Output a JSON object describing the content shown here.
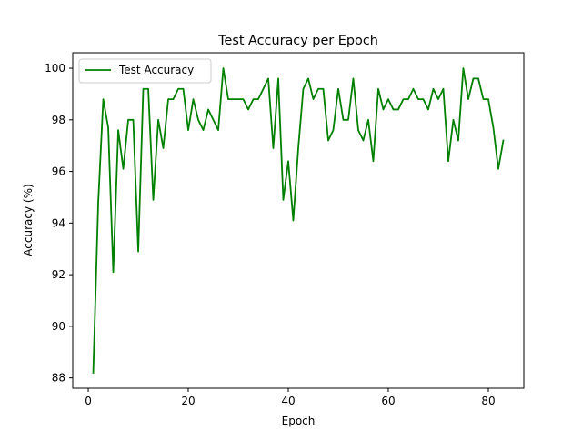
{
  "chart_data": {
    "type": "line",
    "title": "Test Accuracy per Epoch",
    "xlabel": "Epoch",
    "ylabel": "Accuracy (%)",
    "xlim": [
      -3.1,
      87.1
    ],
    "ylim": [
      87.6,
      100.6
    ],
    "xticks": [
      0,
      20,
      40,
      60,
      80
    ],
    "yticks": [
      88,
      90,
      92,
      94,
      96,
      98,
      100
    ],
    "grid": false,
    "legend_position": "upper-left",
    "series": [
      {
        "name": "Test Accuracy",
        "color": "#008000",
        "x": [
          1,
          2,
          3,
          4,
          5,
          6,
          7,
          8,
          9,
          10,
          11,
          12,
          13,
          14,
          15,
          16,
          17,
          18,
          19,
          20,
          21,
          22,
          23,
          24,
          25,
          26,
          27,
          28,
          29,
          30,
          31,
          32,
          33,
          34,
          35,
          36,
          37,
          38,
          39,
          40,
          41,
          42,
          43,
          44,
          45,
          46,
          47,
          48,
          49,
          50,
          51,
          52,
          53,
          54,
          55,
          56,
          57,
          58,
          59,
          60,
          61,
          62,
          63,
          64,
          65,
          66,
          67,
          68,
          69,
          70,
          71,
          72,
          73,
          74,
          75,
          76,
          77,
          78,
          79,
          80,
          81,
          82,
          83
        ],
        "values": [
          88.2,
          94.8,
          98.8,
          97.7,
          92.1,
          97.6,
          96.1,
          98.0,
          98.0,
          92.9,
          99.2,
          99.2,
          94.9,
          98.0,
          96.9,
          98.8,
          98.8,
          99.2,
          99.2,
          97.6,
          98.8,
          98.0,
          97.6,
          98.4,
          98.0,
          97.6,
          100.0,
          98.8,
          98.8,
          98.8,
          98.8,
          98.4,
          98.8,
          98.8,
          99.2,
          99.6,
          96.9,
          99.6,
          94.9,
          96.4,
          94.1,
          96.9,
          99.2,
          99.6,
          98.8,
          99.2,
          99.2,
          97.2,
          97.6,
          99.2,
          98.0,
          98.0,
          99.6,
          97.6,
          97.2,
          98.0,
          96.4,
          99.2,
          98.4,
          98.8,
          98.4,
          98.4,
          98.8,
          98.8,
          99.2,
          98.8,
          98.8,
          98.4,
          99.2,
          98.8,
          99.2,
          96.4,
          98.0,
          97.2,
          100.0,
          98.8,
          99.6,
          99.6,
          98.8,
          98.8,
          97.7,
          96.1,
          97.2
        ]
      }
    ]
  }
}
